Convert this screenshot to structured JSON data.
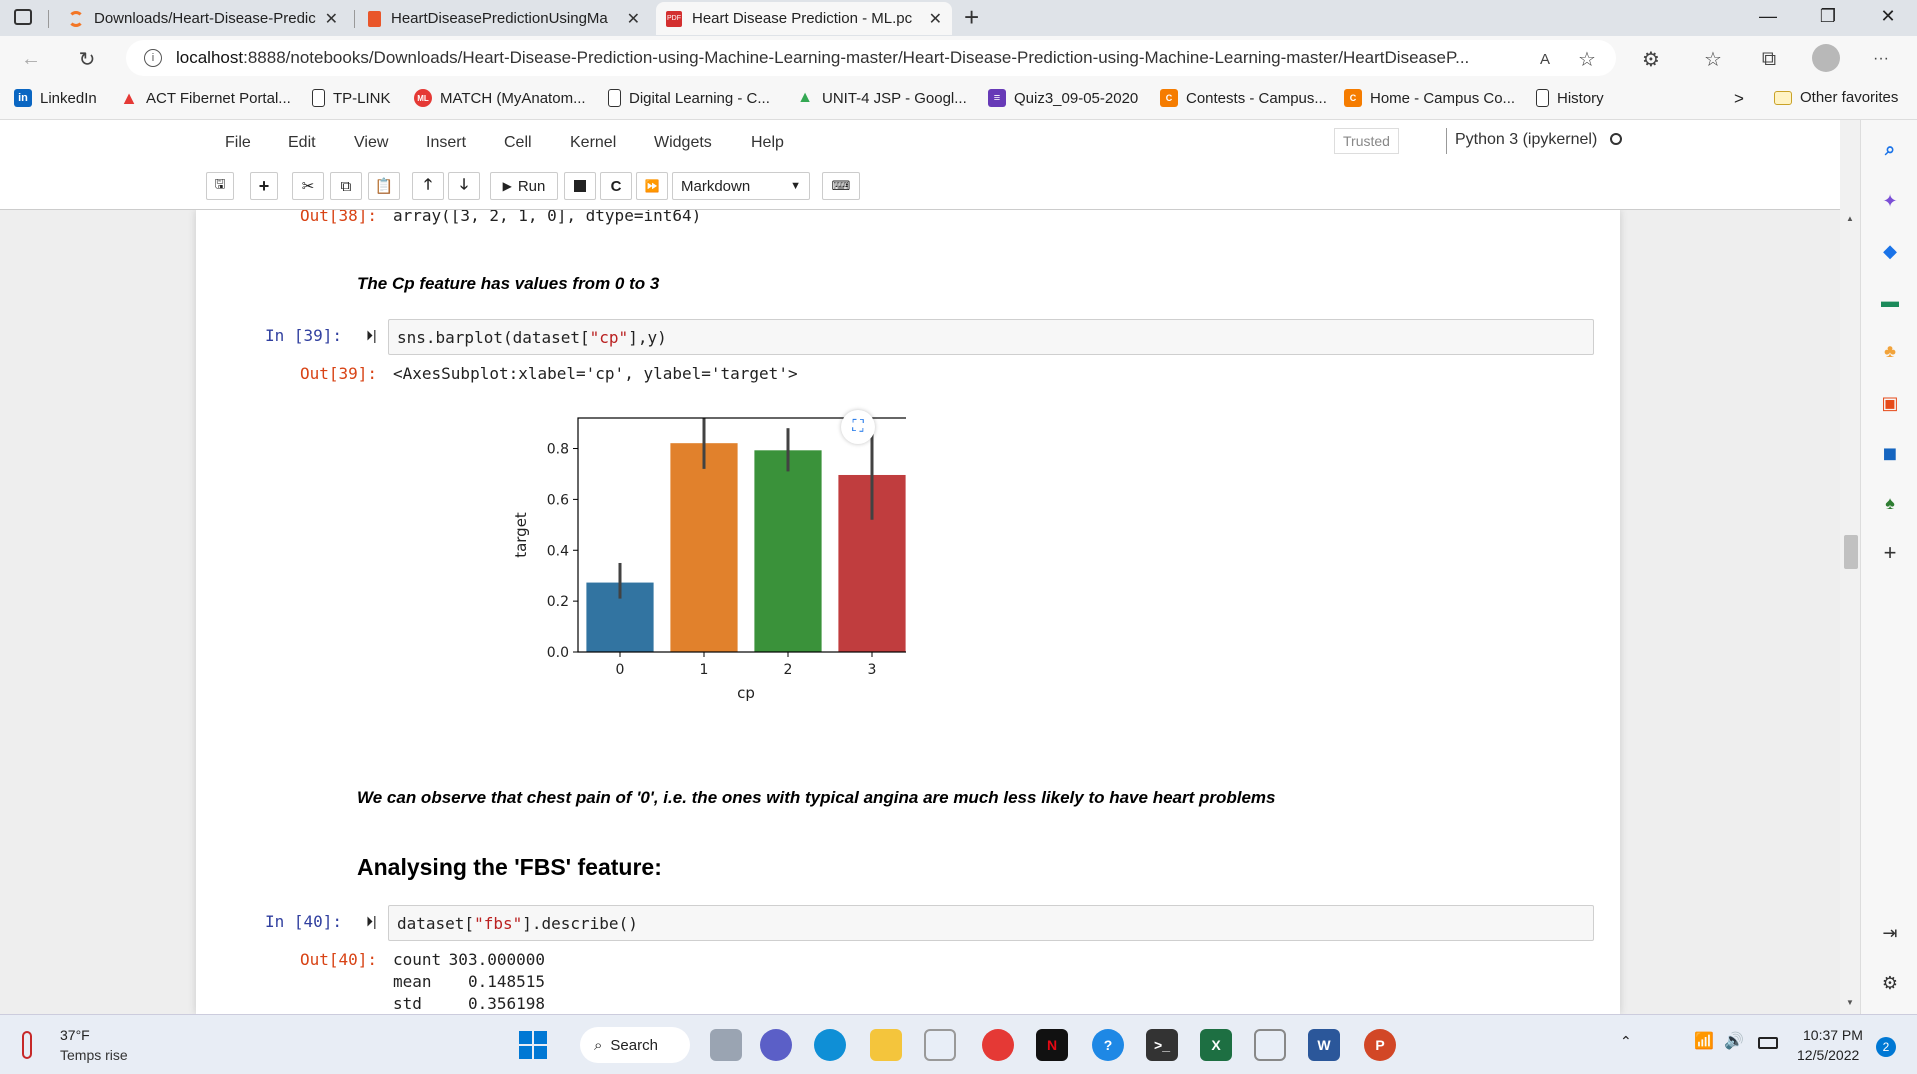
{
  "browser": {
    "tabs": [
      {
        "label": "Downloads/Heart-Disease-Predic",
        "icon": "jupyter-icon"
      },
      {
        "label": "HeartDiseasePredictionUsingMa",
        "icon": "document-icon"
      },
      {
        "label": "Heart Disease Prediction - ML.pc",
        "icon": "pdf-icon"
      }
    ],
    "url_host": "localhost",
    "url_rest": ":8888/notebooks/Downloads/Heart-Disease-Prediction-using-Machine-Learning-master/Heart-Disease-Prediction-using-Machine-Learning-master/HeartDiseaseP...",
    "favorites": [
      {
        "label": "LinkedIn",
        "color": "#0a66c2",
        "glyph": "in"
      },
      {
        "label": "ACT Fibernet Portal...",
        "color": "#e53935",
        "glyph": "A"
      },
      {
        "label": "TP-LINK",
        "color": "",
        "glyph": ""
      },
      {
        "label": "MATCH (MyAnatom...",
        "color": "#e53935",
        "glyph": "ML"
      },
      {
        "label": "Digital Learning - C...",
        "color": "",
        "glyph": ""
      },
      {
        "label": "UNIT-4 JSP - Googl...",
        "color": "#34a853",
        "glyph": "▲"
      },
      {
        "label": "Quiz3_09-05-2020",
        "color": "#673ab7",
        "glyph": "≡"
      },
      {
        "label": "Contests - Campus...",
        "color": "#f57c00",
        "glyph": "C"
      },
      {
        "label": "Home - Campus Co...",
        "color": "#f57c00",
        "glyph": "C"
      },
      {
        "label": "History",
        "color": "",
        "glyph": ""
      }
    ],
    "other_favorites": "Other favorites"
  },
  "jupyter": {
    "menu": [
      "File",
      "Edit",
      "View",
      "Insert",
      "Cell",
      "Kernel",
      "Widgets",
      "Help"
    ],
    "trusted": "Trusted",
    "kernel": "Python 3 (ipykernel)",
    "run_label": "Run",
    "cell_type": "Markdown"
  },
  "notebook": {
    "out38_prompt": "Out[38]:",
    "out38_text": "array([3, 2, 1, 0], dtype=int64)",
    "md1": "The Cp feature has values from 0 to 3",
    "in39_prompt": "In [39]:",
    "in39_code_a": "sns.barplot(dataset[",
    "in39_code_str": "\"cp\"",
    "in39_code_b": "],y)",
    "out39_prompt": "Out[39]:",
    "out39_text": "<AxesSubplot:xlabel='cp', ylabel='target'>",
    "md2": "We can observe that chest pain of '0', i.e. the ones with typical angina are much less likely to have heart problems",
    "h3": "Analysing the 'FBS' feature:",
    "in40_prompt": "In [40]:",
    "in40_code_a": "dataset[",
    "in40_code_str": "\"fbs\"",
    "in40_code_b": "].describe()",
    "out40_prompt": "Out[40]:",
    "describe": [
      {
        "k": "count",
        "v": "303.000000"
      },
      {
        "k": "mean",
        "v": "0.148515"
      },
      {
        "k": "std",
        "v": "0.356198"
      }
    ]
  },
  "chart_data": {
    "type": "bar",
    "categories": [
      "0",
      "1",
      "2",
      "3"
    ],
    "values": [
      0.273,
      0.821,
      0.793,
      0.696
    ],
    "error_low": [
      0.21,
      0.72,
      0.71,
      0.52
    ],
    "error_high": [
      0.35,
      0.92,
      0.88,
      0.86
    ],
    "colors": [
      "#3274a1",
      "#e1812c",
      "#3a923a",
      "#c03d3e"
    ],
    "xlabel": "cp",
    "ylabel": "target",
    "ylim": [
      0,
      0.92
    ],
    "yticks": [
      0.0,
      0.2,
      0.4,
      0.6,
      0.8
    ],
    "ytick_labels": [
      "0.0",
      "0.2",
      "0.4",
      "0.6",
      "0.8"
    ]
  },
  "taskbar": {
    "weather_temp": "37°F",
    "weather_desc": "Temps rise",
    "search_label": "Search",
    "time": "10:37 PM",
    "date": "12/5/2022",
    "notif_count": "2"
  }
}
